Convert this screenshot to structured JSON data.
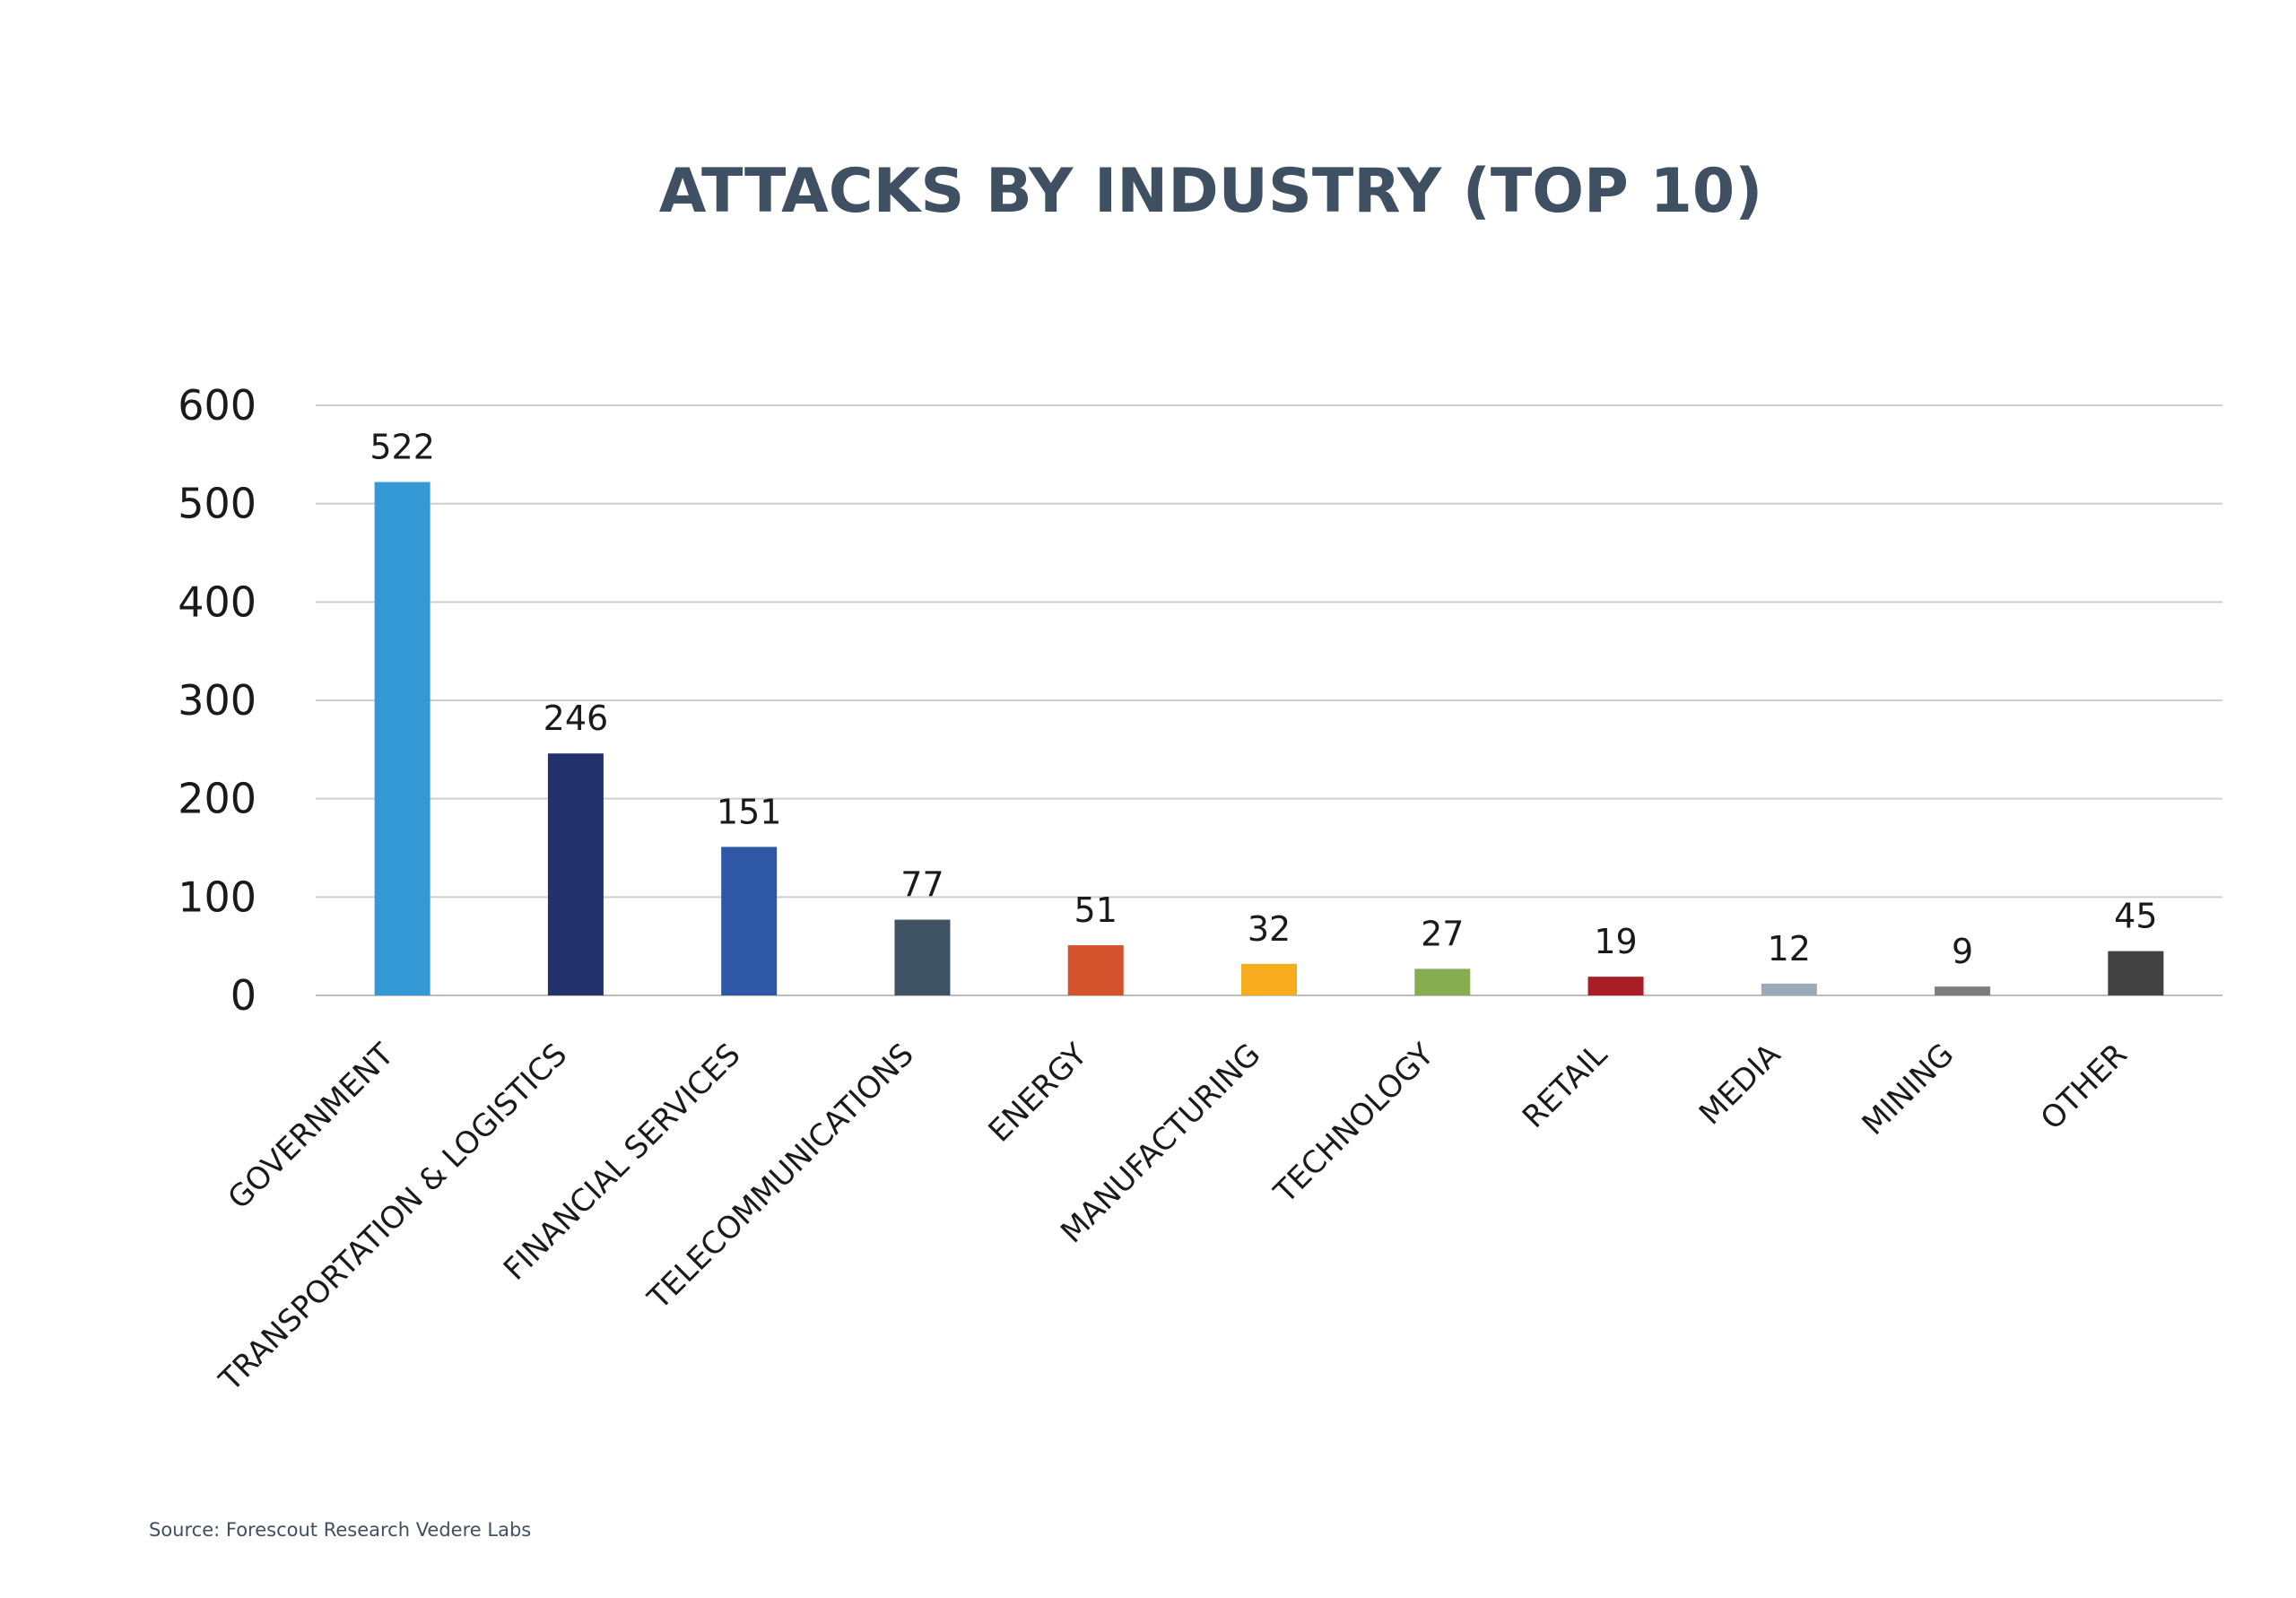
{
  "chart_data": {
    "type": "bar",
    "title": "ATTACKS BY INDUSTRY (TOP 10)",
    "xlabel": "",
    "ylabel": "",
    "ylim": [
      0,
      600
    ],
    "yticks": [
      0,
      100,
      200,
      300,
      400,
      500,
      600
    ],
    "grid": true,
    "categories": [
      "GOVERNMENT",
      "TRANSPORTATION & LOGISTICS",
      "FINANCIAL SERVICES",
      "TELECOMMUNICATIONS",
      "ENERGY",
      "MANUFACTURING",
      "TECHNOLOGY",
      "RETAIL",
      "MEDIA",
      "MINING",
      "OTHER"
    ],
    "values": [
      522,
      246,
      151,
      77,
      51,
      32,
      27,
      19,
      12,
      9,
      45
    ],
    "colors": [
      "#3398d4",
      "#23326a",
      "#2e57a5",
      "#405364",
      "#d4522b",
      "#f6ac1c",
      "#86ad50",
      "#ab1d26",
      "#9aabb7",
      "#7d7d7d",
      "#424242"
    ]
  },
  "source": "Source: Forescout Research Vedere Labs"
}
